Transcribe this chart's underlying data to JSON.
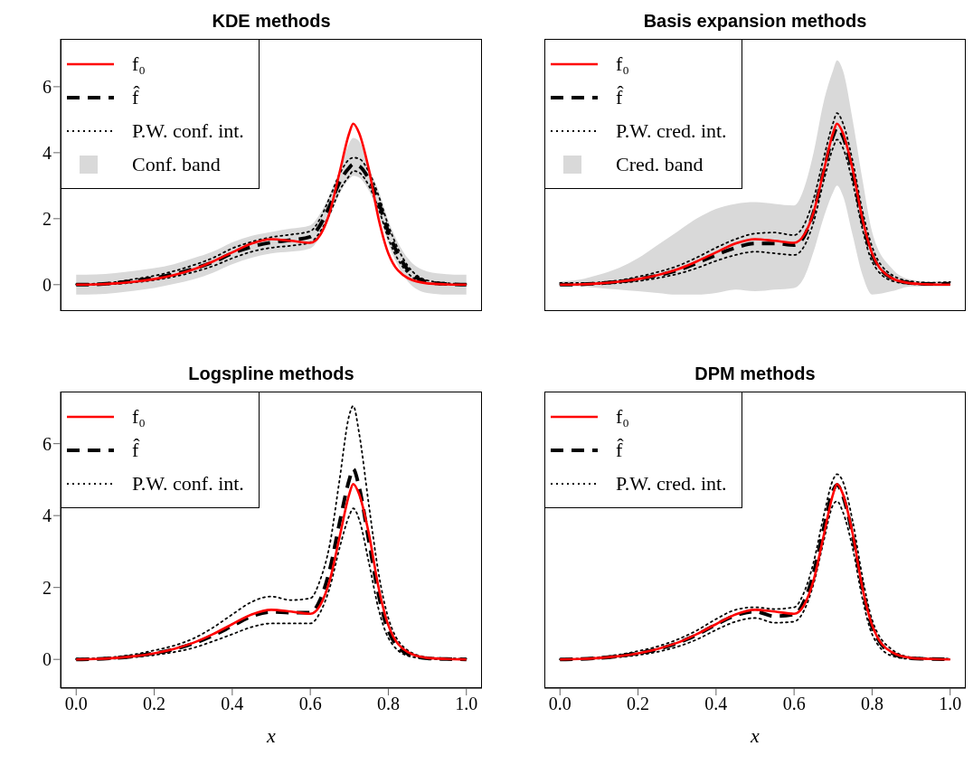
{
  "chart_data": [
    {
      "type": "line",
      "title": "KDE methods",
      "x": [
        0,
        0.05,
        0.1,
        0.15,
        0.2,
        0.25,
        0.3,
        0.35,
        0.4,
        0.45,
        0.5,
        0.55,
        0.6,
        0.625,
        0.65,
        0.675,
        0.7,
        0.71,
        0.725,
        0.75,
        0.775,
        0.8,
        0.85,
        0.9,
        0.95,
        1.0
      ],
      "series": [
        {
          "name": "P.W. conf. int.",
          "color": "#000000",
          "line_style": "dotted",
          "values": [
            0,
            0,
            0.02,
            0.07,
            0.14,
            0.24,
            0.38,
            0.56,
            0.8,
            1.0,
            1.12,
            1.18,
            1.28,
            1.6,
            2.15,
            2.85,
            3.3,
            3.45,
            3.4,
            3.0,
            2.3,
            1.4,
            0.35,
            0.04,
            0,
            0
          ]
        },
        {
          "color": "#000000",
          "line_style": "dotted",
          "values": [
            0.02,
            0.03,
            0.08,
            0.17,
            0.27,
            0.41,
            0.59,
            0.81,
            1.1,
            1.3,
            1.44,
            1.52,
            1.62,
            2.0,
            2.65,
            3.35,
            3.8,
            3.85,
            3.82,
            3.42,
            2.7,
            1.8,
            0.57,
            0.13,
            0.05,
            0.02
          ]
        },
        {
          "name": "f̂",
          "color": "#000000",
          "line_style": "dashed",
          "values": [
            0,
            0.01,
            0.05,
            0.12,
            0.2,
            0.32,
            0.48,
            0.68,
            0.95,
            1.15,
            1.28,
            1.35,
            1.45,
            1.8,
            2.4,
            3.1,
            3.55,
            3.65,
            3.6,
            3.2,
            2.5,
            1.6,
            0.45,
            0.08,
            0.02,
            0
          ],
          "lower": [
            -0.3,
            -0.29,
            -0.25,
            -0.18,
            -0.1,
            0.02,
            0.16,
            0.36,
            0.62,
            0.82,
            0.95,
            1.0,
            1.1,
            1.45,
            2.05,
            2.75,
            3.2,
            3.3,
            3.25,
            2.85,
            2.15,
            1.25,
            0.1,
            -0.25,
            -0.3,
            -0.3
          ],
          "upper": [
            0.3,
            0.31,
            0.35,
            0.42,
            0.5,
            0.62,
            0.8,
            1.0,
            1.28,
            1.48,
            1.6,
            1.7,
            1.8,
            2.15,
            2.75,
            3.45,
            4.3,
            4.45,
            4.35,
            3.55,
            2.85,
            1.95,
            0.8,
            0.4,
            0.32,
            0.3
          ]
        },
        {
          "name": "f₀",
          "color": "#ff0000",
          "line_style": "solid",
          "values": [
            0,
            0.01,
            0.04,
            0.09,
            0.17,
            0.29,
            0.46,
            0.7,
            0.98,
            1.25,
            1.38,
            1.33,
            1.27,
            1.5,
            2.2,
            3.4,
            4.6,
            4.88,
            4.6,
            3.5,
            2.0,
            0.95,
            0.2,
            0.04,
            0.01,
            0
          ]
        }
      ],
      "xlim": [
        -0.04,
        1.04
      ],
      "ylim": [
        -0.8,
        7.45
      ],
      "yticks": [
        0,
        2,
        4,
        6
      ],
      "tick_labels": "y",
      "legend": "top left",
      "marker": "none",
      "annotations": [
        "Conf. band"
      ]
    },
    {
      "type": "line",
      "title": "Basis expansion methods",
      "x": [
        0,
        0.05,
        0.1,
        0.15,
        0.2,
        0.25,
        0.3,
        0.35,
        0.4,
        0.45,
        0.5,
        0.55,
        0.6,
        0.625,
        0.65,
        0.675,
        0.7,
        0.71,
        0.725,
        0.75,
        0.775,
        0.8,
        0.85,
        0.9,
        0.95,
        1.0
      ],
      "series": [
        {
          "name": "P.W. cred. int.",
          "color": "#000000",
          "line_style": "dotted",
          "values": [
            0,
            0,
            0.02,
            0.05,
            0.11,
            0.2,
            0.32,
            0.5,
            0.72,
            0.9,
            1.0,
            0.95,
            0.9,
            1.15,
            1.9,
            3.1,
            4.15,
            4.4,
            4.15,
            3.1,
            1.7,
            0.7,
            0.12,
            0.02,
            0,
            0
          ]
        },
        {
          "color": "#000000",
          "line_style": "dotted",
          "values": [
            0.05,
            0.05,
            0.07,
            0.13,
            0.24,
            0.38,
            0.56,
            0.82,
            1.12,
            1.38,
            1.55,
            1.58,
            1.5,
            1.8,
            2.6,
            3.8,
            4.9,
            5.2,
            4.9,
            3.75,
            2.25,
            1.15,
            0.3,
            0.1,
            0.06,
            0.08
          ]
        },
        {
          "name": "f̂",
          "color": "#000000",
          "line_style": "dashed",
          "values": [
            0,
            0.01,
            0.04,
            0.09,
            0.17,
            0.28,
            0.43,
            0.65,
            0.9,
            1.12,
            1.25,
            1.25,
            1.2,
            1.45,
            2.2,
            3.4,
            4.5,
            4.75,
            4.5,
            3.4,
            1.95,
            0.9,
            0.2,
            0.05,
            0.02,
            0.03
          ],
          "lower": [
            -0.05,
            -0.05,
            -0.1,
            -0.15,
            -0.2,
            -0.25,
            -0.3,
            -0.3,
            -0.25,
            -0.15,
            -0.2,
            -0.15,
            -0.1,
            0.2,
            1.0,
            2.0,
            2.8,
            3.0,
            2.7,
            1.5,
            0.3,
            -0.3,
            -0.2,
            -0.05,
            -0.05,
            -0.05
          ],
          "upper": [
            0.1,
            0.15,
            0.3,
            0.5,
            0.8,
            1.2,
            1.6,
            2.0,
            2.3,
            2.45,
            2.5,
            2.45,
            2.4,
            2.9,
            4.0,
            5.5,
            6.5,
            6.8,
            6.5,
            5.0,
            3.2,
            1.6,
            0.5,
            0.15,
            0.1,
            0.1
          ]
        },
        {
          "name": "f₀",
          "color": "#ff0000",
          "line_style": "solid",
          "values": [
            0,
            0.01,
            0.04,
            0.09,
            0.17,
            0.29,
            0.46,
            0.7,
            0.98,
            1.25,
            1.38,
            1.33,
            1.27,
            1.5,
            2.2,
            3.4,
            4.6,
            4.88,
            4.6,
            3.5,
            2.0,
            0.95,
            0.2,
            0.04,
            0.01,
            0
          ]
        }
      ],
      "xlim": [
        -0.04,
        1.04
      ],
      "ylim": [
        -0.8,
        7.45
      ],
      "yticks": [
        0,
        2,
        4,
        6
      ],
      "tick_labels": false,
      "legend": "top left",
      "marker": "none",
      "annotations": [
        "Cred. band"
      ]
    },
    {
      "type": "line",
      "title": "Logspline methods",
      "xlabel": "x",
      "x": [
        0,
        0.05,
        0.1,
        0.15,
        0.2,
        0.25,
        0.3,
        0.35,
        0.4,
        0.45,
        0.5,
        0.55,
        0.6,
        0.625,
        0.65,
        0.675,
        0.7,
        0.71,
        0.725,
        0.75,
        0.775,
        0.8,
        0.85,
        0.9,
        0.95,
        1.0
      ],
      "series": [
        {
          "name": "P.W. conf. int.",
          "color": "#000000",
          "line_style": "dotted",
          "values": [
            0,
            0,
            0.02,
            0.06,
            0.12,
            0.2,
            0.32,
            0.5,
            0.7,
            0.9,
            1.0,
            1.0,
            1.0,
            1.3,
            2.0,
            3.1,
            4.0,
            4.2,
            3.9,
            2.7,
            1.4,
            0.6,
            0.1,
            0.02,
            0,
            0
          ]
        },
        {
          "color": "#000000",
          "line_style": "dotted",
          "values": [
            0.02,
            0.03,
            0.07,
            0.14,
            0.25,
            0.38,
            0.58,
            0.88,
            1.25,
            1.6,
            1.75,
            1.65,
            1.7,
            2.2,
            3.2,
            5.0,
            6.8,
            7.05,
            6.3,
            4.3,
            2.4,
            1.15,
            0.25,
            0.06,
            0.03,
            0.02
          ]
        },
        {
          "name": "f̂",
          "color": "#000000",
          "line_style": "dashed",
          "values": [
            0,
            0.01,
            0.04,
            0.09,
            0.17,
            0.28,
            0.44,
            0.66,
            0.93,
            1.2,
            1.32,
            1.3,
            1.3,
            1.65,
            2.5,
            3.8,
            5.0,
            5.3,
            4.8,
            3.3,
            1.8,
            0.8,
            0.15,
            0.03,
            0.01,
            0
          ]
        },
        {
          "name": "f₀",
          "color": "#ff0000",
          "line_style": "solid",
          "values": [
            0,
            0.01,
            0.04,
            0.09,
            0.17,
            0.29,
            0.46,
            0.7,
            0.98,
            1.25,
            1.38,
            1.33,
            1.27,
            1.5,
            2.2,
            3.4,
            4.6,
            4.88,
            4.6,
            3.5,
            2.0,
            0.95,
            0.2,
            0.04,
            0.01,
            0
          ]
        }
      ],
      "xlim": [
        -0.04,
        1.04
      ],
      "ylim": [
        -0.8,
        7.45
      ],
      "yticks": [
        0,
        2,
        4,
        6
      ],
      "xticks": [
        {
          "value": 0,
          "label": "0.0"
        },
        {
          "value": 0.2,
          "label": "0.2"
        },
        {
          "value": 0.4,
          "label": "0.4"
        },
        {
          "value": 0.6,
          "label": "0.6"
        },
        {
          "value": 0.8,
          "label": "0.8"
        },
        {
          "value": 1,
          "label": "1.0"
        }
      ],
      "legend": "top left",
      "marker": "none"
    },
    {
      "type": "line",
      "title": "DPM methods",
      "xlabel": "x",
      "x": [
        0,
        0.05,
        0.1,
        0.15,
        0.2,
        0.25,
        0.3,
        0.35,
        0.4,
        0.45,
        0.5,
        0.55,
        0.6,
        0.625,
        0.65,
        0.675,
        0.7,
        0.71,
        0.725,
        0.75,
        0.775,
        0.8,
        0.85,
        0.9,
        0.95,
        1.0
      ],
      "series": [
        {
          "name": "P.W. cred. int.",
          "color": "#000000",
          "line_style": "dotted",
          "values": [
            0,
            0,
            0.02,
            0.06,
            0.12,
            0.21,
            0.35,
            0.55,
            0.82,
            1.05,
            1.15,
            1.02,
            1.05,
            1.35,
            2.1,
            3.25,
            4.3,
            4.4,
            4.1,
            3.1,
            1.7,
            0.7,
            0.1,
            0.01,
            0,
            0
          ]
        },
        {
          "color": "#000000",
          "line_style": "dotted",
          "values": [
            0.01,
            0.02,
            0.06,
            0.13,
            0.23,
            0.36,
            0.55,
            0.8,
            1.12,
            1.38,
            1.45,
            1.4,
            1.45,
            1.85,
            2.7,
            3.95,
            5.0,
            5.15,
            4.95,
            3.85,
            2.3,
            1.1,
            0.28,
            0.06,
            0.03,
            0.02
          ]
        },
        {
          "name": "f̂",
          "color": "#000000",
          "line_style": "dashed",
          "values": [
            0,
            0.01,
            0.04,
            0.09,
            0.17,
            0.28,
            0.45,
            0.68,
            0.97,
            1.22,
            1.33,
            1.2,
            1.25,
            1.6,
            2.4,
            3.6,
            4.7,
            4.85,
            4.55,
            3.45,
            2.0,
            0.9,
            0.18,
            0.03,
            0.01,
            0
          ]
        },
        {
          "name": "f₀",
          "color": "#ff0000",
          "line_style": "solid",
          "values": [
            0,
            0.01,
            0.04,
            0.09,
            0.17,
            0.29,
            0.46,
            0.7,
            0.98,
            1.25,
            1.38,
            1.33,
            1.27,
            1.5,
            2.2,
            3.4,
            4.6,
            4.88,
            4.6,
            3.5,
            2.0,
            0.95,
            0.2,
            0.04,
            0.01,
            0
          ]
        }
      ],
      "xlim": [
        -0.04,
        1.04
      ],
      "ylim": [
        -0.8,
        7.45
      ],
      "yticks": [
        0,
        2,
        4,
        6
      ],
      "xticks": [
        {
          "value": 0,
          "label": "0.0"
        },
        {
          "value": 0.2,
          "label": "0.2"
        },
        {
          "value": 0.4,
          "label": "0.4"
        },
        {
          "value": 0.6,
          "label": "0.6"
        },
        {
          "value": 0.8,
          "label": "0.8"
        },
        {
          "value": 1,
          "label": "1.0"
        }
      ],
      "tick_labels": "x",
      "legend": "top left",
      "marker": "none"
    }
  ]
}
